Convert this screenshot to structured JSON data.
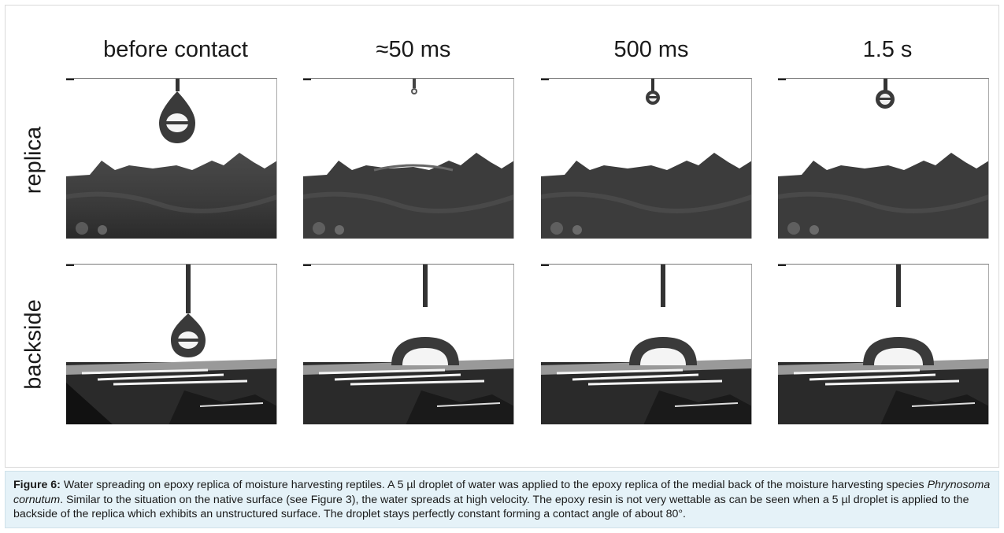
{
  "figure": {
    "columns": [
      "before contact",
      "≈50 ms",
      "500 ms",
      "1.5 s"
    ],
    "rows": [
      "replica",
      "backside"
    ]
  },
  "caption": {
    "label": "Figure 6:",
    "text1": " Water spreading on epoxy replica of moisture harvesting reptiles. A 5 µl droplet of water was applied to the epoxy replica of the medial back of the moisture harvesting species ",
    "species": "Phrynosoma cornutum",
    "text2": ". Similar to the situation on the native surface (see Figure 3), the water spreads at high velocity. The epoxy resin is not very wettable as can be seen when a 5 µl droplet is applied to the backside of the replica which exhibits an unstructured surface. The droplet stays perfectly constant forming a contact angle of about 80°."
  },
  "colors": {
    "caption_bg": "#e5f2f8",
    "border": "#d9d9d9"
  }
}
